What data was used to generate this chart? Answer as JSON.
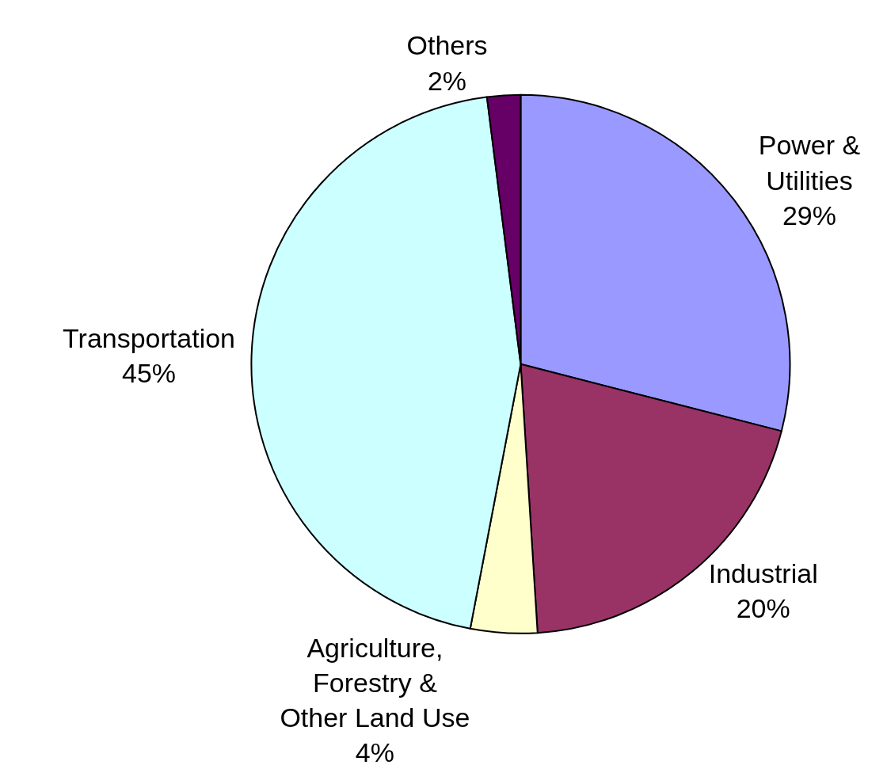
{
  "chart_data": {
    "type": "pie",
    "categories": [
      "Power & Utilities",
      "Industrial",
      "Agriculture, Forestry & Other Land Use",
      "Transportation",
      "Others"
    ],
    "values": [
      29,
      20,
      4,
      45,
      2
    ],
    "colors": [
      "#9999ff",
      "#993366",
      "#ffffcc",
      "#ccffff",
      "#660066"
    ],
    "value_labels": [
      "29%",
      "20%",
      "4%",
      "45%",
      "2%"
    ],
    "legend": false
  }
}
